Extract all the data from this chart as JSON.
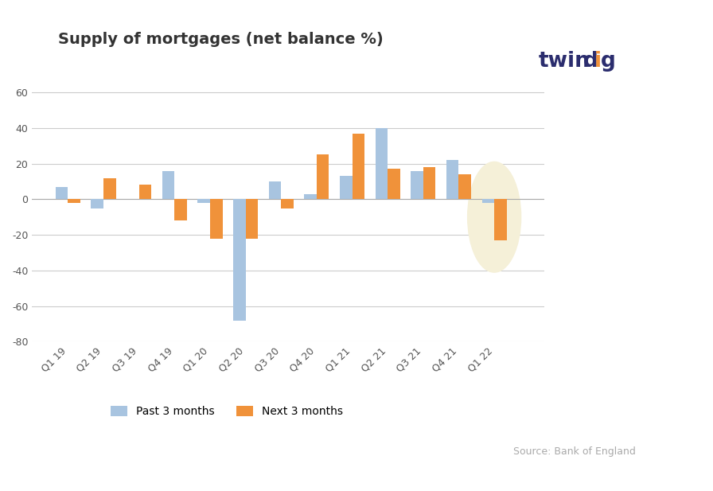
{
  "categories": [
    "Q1 19",
    "Q2 19",
    "Q3 19",
    "Q4 19",
    "Q1 20",
    "Q2 20",
    "Q3 20",
    "Q4 20",
    "Q1 21",
    "Q2 21",
    "Q3 21",
    "Q4 21",
    "Q1 22"
  ],
  "past_3_months": [
    7,
    -5,
    0,
    16,
    -2,
    -68,
    10,
    3,
    13,
    40,
    16,
    22,
    -2
  ],
  "next_3_months": [
    -2,
    12,
    8,
    -12,
    -22,
    -22,
    -5,
    25,
    37,
    17,
    18,
    14,
    -23
  ],
  "bar_color_past": "#a8c4e0",
  "bar_color_next": "#f0923a",
  "title": "Supply of mortgages (net balance %)",
  "title_fontsize": 14,
  "ylim": [
    -80,
    80
  ],
  "yticks": [
    -80,
    -60,
    -40,
    -20,
    0,
    20,
    40,
    60
  ],
  "background_color": "#ffffff",
  "grid_color": "#cccccc",
  "twindig_color_twin": "#2b2d6e",
  "twindig_color_dig": "#f0923a",
  "source_text": "Source: Bank of England",
  "highlight_color": "#f5f0d8",
  "bar_width": 0.35
}
